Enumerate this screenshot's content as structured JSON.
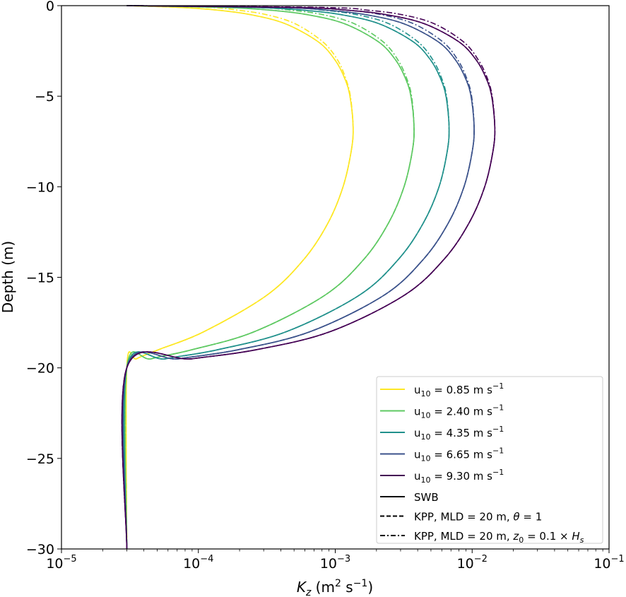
{
  "chart_data": {
    "type": "line",
    "xlabel_main": "K",
    "xlabel_sub": "z",
    "xlabel_units": " (m",
    "xlabel_units_sup": "2",
    "xlabel_units_end": " s",
    "xlabel_units_sup2": "−1",
    "xlabel_close": ")",
    "ylabel": "Depth (m)",
    "x_scale": "log",
    "xlim": [
      1e-05,
      0.1
    ],
    "ylim": [
      -30,
      0
    ],
    "x_ticks": [
      {
        "base": "10",
        "exp": "−5"
      },
      {
        "base": "10",
        "exp": "−4"
      },
      {
        "base": "10",
        "exp": "−3"
      },
      {
        "base": "10",
        "exp": "−2"
      },
      {
        "base": "10",
        "exp": "−1"
      }
    ],
    "y_ticks": [
      "0",
      "−5",
      "−10",
      "−15",
      "−20",
      "−25",
      "−30"
    ],
    "y_tick_values": [
      0,
      -5,
      -10,
      -15,
      -20,
      -25,
      -30
    ],
    "grid": false,
    "legend_position": "lower-right",
    "depth": [
      0,
      -0.1,
      -0.25,
      -0.5,
      -1,
      -2,
      -3,
      -4,
      -5,
      -6.67,
      -8,
      -10,
      -12,
      -14,
      -16,
      -18,
      -19,
      -19.5,
      -20,
      -30
    ],
    "series": [
      {
        "label_prefix": "u",
        "label_sub": "10",
        "label_value": " = 0.85 m s",
        "label_sup": "−1",
        "color": "#fde725",
        "swb": [
          3e-05,
          7.41e-05,
          0.000139,
          0.000242,
          0.000432,
          0.000752,
          0.000996,
          0.00117,
          0.00128,
          0.00135,
          0.00131,
          0.00114,
          0.000885,
          0.000591,
          0.000315,
          0.00011,
          5.11e-05,
          3.54e-05,
          3e-05,
          3e-05
        ],
        "kpp_theta": [
          3e-05,
          7.41e-05,
          0.000139,
          0.000242,
          0.000432,
          0.000752,
          0.000996,
          0.00117,
          0.00128,
          0.00135,
          0.00131,
          0.00114,
          0.000885,
          0.000591,
          0.000315,
          0.00011,
          5.11e-05,
          3.54e-05,
          3e-05,
          3e-05
        ],
        "kpp_z0": [
          3e-05,
          0.000119,
          0.000195,
          0.000315,
          0.00051,
          0.000812,
          0.00104,
          0.00119,
          0.00129,
          0.00135,
          0.00131,
          0.00114,
          0.000885,
          0.000591,
          0.000315,
          0.00011,
          5.11e-05,
          3.54e-05,
          3e-05,
          3e-05
        ]
      },
      {
        "label_prefix": "u",
        "label_sub": "10",
        "label_value": " = 2.40 m s",
        "label_sup": "−1",
        "color": "#5ec962",
        "swb": [
          3e-05,
          0.000155,
          0.000337,
          0.000628,
          0.00117,
          0.00207,
          0.00276,
          0.00325,
          0.00357,
          0.00376,
          0.00366,
          0.00318,
          0.00245,
          0.00162,
          0.000836,
          0.000257,
          8.97e-05,
          4.53e-05,
          3e-05,
          3e-05
        ],
        "kpp_theta": [
          3e-05,
          0.000155,
          0.000337,
          0.000628,
          0.00117,
          0.00207,
          0.00276,
          0.00325,
          0.00357,
          0.00376,
          0.00366,
          0.00318,
          0.00245,
          0.00162,
          0.000836,
          0.000257,
          8.97e-05,
          4.53e-05,
          3e-05,
          3e-05
        ],
        "kpp_z0": [
          3e-05,
          0.000248,
          0.000472,
          0.000816,
          0.00138,
          0.00224,
          0.00287,
          0.00332,
          0.00361,
          0.00376,
          0.00366,
          0.00318,
          0.00245,
          0.00162,
          0.000836,
          0.000257,
          8.97e-05,
          4.53e-05,
          3e-05,
          3e-05
        ]
      },
      {
        "label_prefix": "u",
        "label_sub": "10",
        "label_value": " = 4.35 m s",
        "label_sup": "−1",
        "color": "#21918c",
        "swb": [
          3e-05,
          0.000255,
          0.000586,
          0.00111,
          0.00209,
          0.00372,
          0.00497,
          0.00586,
          0.00644,
          0.00678,
          0.00659,
          0.00573,
          0.0044,
          0.0029,
          0.00149,
          0.00044,
          0.000138,
          5.77e-05,
          3e-05,
          3e-05
        ],
        "kpp_theta": [
          3e-05,
          0.000255,
          0.000586,
          0.00111,
          0.00209,
          0.00372,
          0.00497,
          0.00586,
          0.00644,
          0.00678,
          0.00659,
          0.00573,
          0.0044,
          0.0029,
          0.00149,
          0.00044,
          0.000138,
          5.77e-05,
          3e-05,
          3e-05
        ],
        "kpp_z0": [
          3e-05,
          0.000408,
          0.00082,
          0.00144,
          0.00247,
          0.00402,
          0.00517,
          0.00598,
          0.0065,
          0.00678,
          0.00659,
          0.00573,
          0.0044,
          0.0029,
          0.00149,
          0.00044,
          0.000138,
          5.77e-05,
          3e-05,
          3e-05
        ]
      },
      {
        "label_prefix": "u",
        "label_sub": "10",
        "label_value": " = 6.65 m s",
        "label_sup": "−1",
        "color": "#3b528b",
        "swb": [
          3e-05,
          0.000374,
          0.000878,
          0.00168,
          0.00317,
          0.00566,
          0.00756,
          0.00893,
          0.00981,
          0.01033,
          0.01004,
          0.00872,
          0.0067,
          0.00441,
          0.00226,
          0.000656,
          0.000195,
          7.23e-05,
          3e-05,
          3e-05
        ],
        "kpp_theta": [
          3e-05,
          0.000374,
          0.000878,
          0.00168,
          0.00317,
          0.00566,
          0.00756,
          0.00893,
          0.00981,
          0.01033,
          0.01004,
          0.00872,
          0.0067,
          0.00441,
          0.00226,
          0.000656,
          0.000195,
          7.23e-05,
          3e-05,
          3e-05
        ],
        "kpp_z0": [
          3e-05,
          0.000598,
          0.00123,
          0.00218,
          0.00374,
          0.00611,
          0.00786,
          0.00911,
          0.00991,
          0.01033,
          0.01004,
          0.00872,
          0.0067,
          0.00441,
          0.00226,
          0.000656,
          0.000195,
          7.23e-05,
          3e-05,
          3e-05
        ]
      },
      {
        "label_prefix": "u",
        "label_sub": "10",
        "label_value": " = 9.30 m s",
        "label_sup": "−1",
        "color": "#440154",
        "swb": [
          3e-05,
          0.000518,
          0.00123,
          0.00237,
          0.00448,
          0.00801,
          0.01071,
          0.01264,
          0.01389,
          0.01463,
          0.01422,
          0.01235,
          0.00949,
          0.00624,
          0.00318,
          0.000918,
          0.000264,
          9e-05,
          3e-05,
          3e-05
        ],
        "kpp_theta": [
          3e-05,
          0.000518,
          0.00123,
          0.00237,
          0.00448,
          0.00801,
          0.01071,
          0.01264,
          0.01389,
          0.01463,
          0.01422,
          0.01235,
          0.00949,
          0.00624,
          0.00318,
          0.000918,
          0.000264,
          9e-05,
          3e-05,
          3e-05
        ],
        "kpp_z0": [
          3e-05,
          0.000829,
          0.00172,
          0.00308,
          0.00529,
          0.00865,
          0.0111,
          0.0129,
          0.014,
          0.01463,
          0.01422,
          0.01235,
          0.00949,
          0.00624,
          0.00318,
          0.000918,
          0.000264,
          9e-05,
          3e-05,
          3e-05
        ]
      }
    ],
    "style_legend": [
      {
        "style": "solid",
        "label": "SWB"
      },
      {
        "style": "dashed",
        "label": "KPP, MLD = 20 m, ",
        "math": "θ",
        "math_rest": " = 1"
      },
      {
        "style": "dashdot",
        "label": "KPP, MLD = 20 m, ",
        "math": "z",
        "math_sub": "0",
        "math_rest": " = 0.1 × ",
        "math2": "H",
        "math2_sub": "s"
      }
    ]
  }
}
